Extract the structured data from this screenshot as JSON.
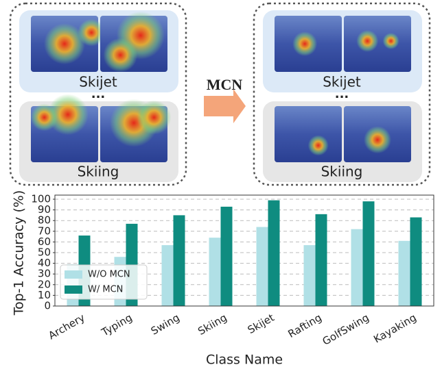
{
  "diagram": {
    "arrow_label": "MCN",
    "panels": [
      {
        "top_label": "Skijet",
        "ellipsis": "...",
        "bottom_label": "Skiing"
      },
      {
        "top_label": "Skijet",
        "ellipsis": "...",
        "bottom_label": "Skiing"
      }
    ]
  },
  "chart_data": {
    "type": "bar",
    "x_label": "Class Name",
    "y_label": "Top-1 Accuracy (%)",
    "categories": [
      "Archery",
      "Typing",
      "Swing",
      "Skiing",
      "Skijet",
      "Rafting",
      "GolfSwing",
      "Kayaking"
    ],
    "series": [
      {
        "name": "W/O MCN",
        "color": "#b0e0e6",
        "values": [
          39,
          46,
          57,
          64,
          74,
          57,
          72,
          61
        ]
      },
      {
        "name": "W/ MCN",
        "color": "#0f8c80",
        "values": [
          66,
          77,
          85,
          93,
          99,
          86,
          98,
          83
        ]
      }
    ],
    "ylim": [
      0,
      100
    ],
    "yticks": [
      0,
      10,
      20,
      30,
      40,
      50,
      60,
      70,
      80,
      90,
      100
    ],
    "grid": true,
    "legend": "lower left"
  }
}
